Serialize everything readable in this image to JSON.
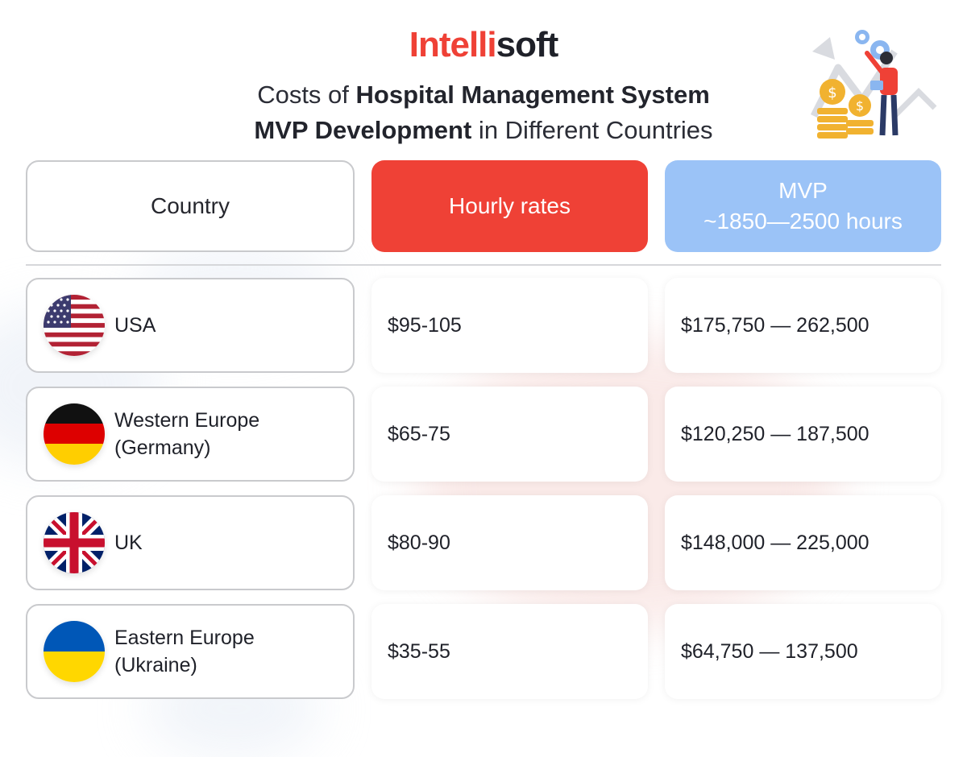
{
  "brand": {
    "logo_part1": "Intelli",
    "logo_part2": "soft",
    "accent_color": "#ef4136",
    "dark_color": "#1f2129"
  },
  "title": {
    "line1_normal": "Costs of ",
    "line1_bold": "Hospital Management System",
    "line2_bold": "MVP Development",
    "line2_normal": " in Different Countries"
  },
  "illustration": {
    "icon": "person-with-coins-and-gears-icon"
  },
  "table": {
    "headers": {
      "country": "Country",
      "rates": "Hourly rates",
      "mvp_line1": "MVP",
      "mvp_line2": "~1850—2500 hours"
    },
    "header_colors": {
      "rates": "#ef4136",
      "mvp": "#9bc3f7"
    },
    "rows": [
      {
        "country": "USA",
        "country_line2": "",
        "flag": "usa-flag-icon",
        "rate": "$95-105",
        "mvp": "$175,750 — 262,500"
      },
      {
        "country": "Western Europe",
        "country_line2": "(Germany)",
        "flag": "germany-flag-icon",
        "rate": "$65-75",
        "mvp": "$120,250 — 187,500"
      },
      {
        "country": "UK",
        "country_line2": "",
        "flag": "uk-flag-icon",
        "rate": "$80-90",
        "mvp": "$148,000 — 225,000"
      },
      {
        "country": "Eastern Europe",
        "country_line2": "(Ukraine)",
        "flag": "ukraine-flag-icon",
        "rate": "$35-55",
        "mvp": "$64,750 — 137,500"
      }
    ]
  }
}
